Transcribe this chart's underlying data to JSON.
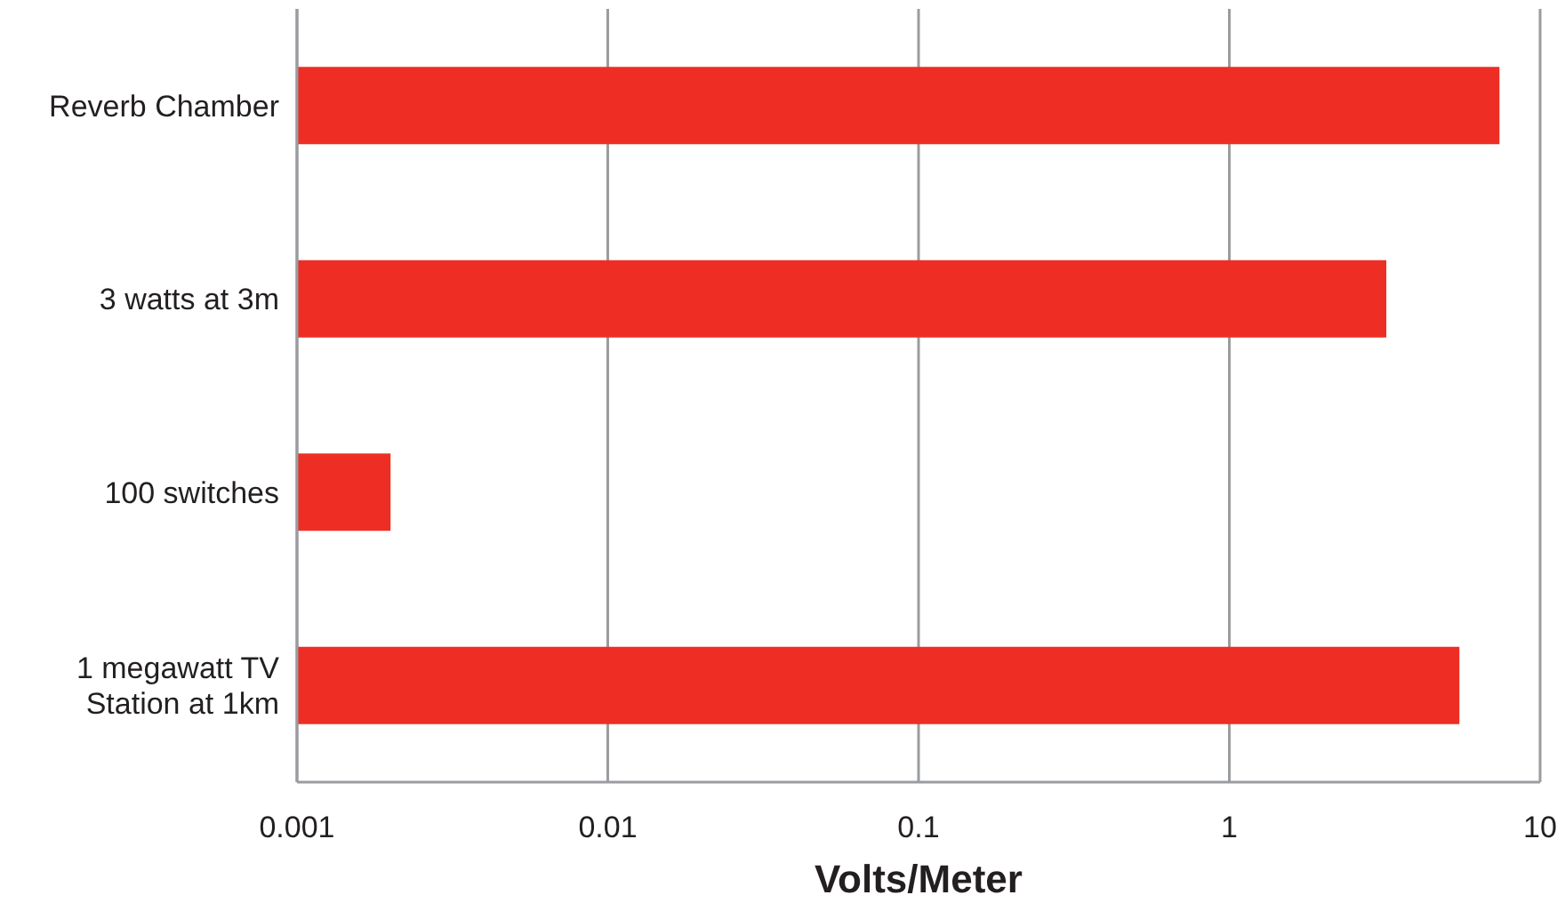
{
  "chart_data": {
    "type": "bar",
    "orientation": "horizontal",
    "log": "x",
    "xlabel": "Volts/Meter",
    "categories": [
      "Reverb Chamber",
      "3 watts at 3m",
      "100 switches",
      "1 megawatt TV\nStation at 1km"
    ],
    "values": [
      7.4,
      3.2,
      0.002,
      5.5
    ],
    "color": "#ee2e24",
    "xlim": [
      0.001,
      10
    ],
    "xticks": [
      0.001,
      0.01,
      0.1,
      1,
      10
    ],
    "grid": "x"
  }
}
